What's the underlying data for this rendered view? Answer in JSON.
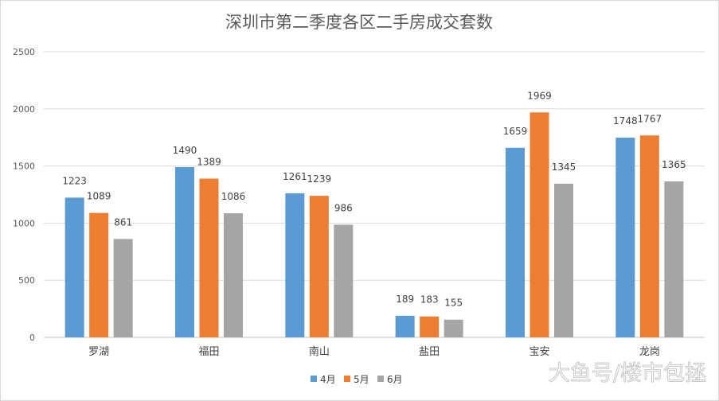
{
  "chart_data": {
    "type": "bar",
    "title": "深圳市第二季度各区二手房成交套数",
    "categories": [
      "罗湖",
      "福田",
      "南山",
      "盐田",
      "宝安",
      "龙岗"
    ],
    "series": [
      {
        "name": "4月",
        "color": "#5b9bd5",
        "values": [
          1223,
          1490,
          1261,
          189,
          1659,
          1748
        ]
      },
      {
        "name": "5月",
        "color": "#ed7d31",
        "values": [
          1089,
          1389,
          1239,
          183,
          1969,
          1767
        ]
      },
      {
        "name": "6月",
        "color": "#a5a5a5",
        "values": [
          861,
          1086,
          986,
          155,
          1345,
          1365
        ]
      }
    ],
    "ylim": [
      0,
      2500
    ],
    "yticks": [
      0,
      500,
      1000,
      1500,
      2000,
      2500
    ],
    "grid": true,
    "data_labels": true,
    "legend_position": "bottom"
  },
  "watermark": "大鱼号/楼市包拯"
}
